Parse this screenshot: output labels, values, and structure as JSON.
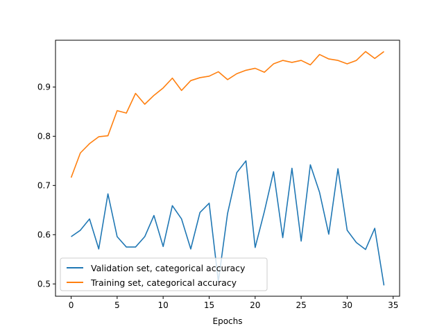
{
  "chart_data": {
    "type": "line",
    "title": "",
    "xlabel": "Epochs",
    "ylabel": "",
    "xlim": [
      -1.7,
      35.7
    ],
    "ylim": [
      0.475,
      0.995
    ],
    "x_ticks": [
      0,
      5,
      10,
      15,
      20,
      25,
      30,
      35
    ],
    "y_ticks": [
      0.5,
      0.6,
      0.7,
      0.8,
      0.9
    ],
    "x_tick_labels": [
      "0",
      "5",
      "10",
      "15",
      "20",
      "25",
      "30",
      "35"
    ],
    "y_tick_labels": [
      "0.5",
      "0.6",
      "0.7",
      "0.8",
      "0.9"
    ],
    "grid": false,
    "legend_position": "lower-left",
    "x": [
      0,
      1,
      2,
      3,
      4,
      5,
      6,
      7,
      8,
      9,
      10,
      11,
      12,
      13,
      14,
      15,
      16,
      17,
      18,
      19,
      20,
      21,
      22,
      23,
      24,
      25,
      26,
      27,
      28,
      29,
      30,
      31,
      32,
      33,
      34
    ],
    "series": [
      {
        "name": "Validation set, categorical accuracy",
        "color": "#1f77b4",
        "values": [
          0.596,
          0.609,
          0.632,
          0.571,
          0.683,
          0.596,
          0.575,
          0.575,
          0.596,
          0.639,
          0.576,
          0.659,
          0.632,
          0.571,
          0.645,
          0.664,
          0.505,
          0.643,
          0.726,
          0.75,
          0.574,
          0.647,
          0.728,
          0.594,
          0.735,
          0.587,
          0.742,
          0.686,
          0.601,
          0.734,
          0.609,
          0.584,
          0.57,
          0.613,
          0.497
        ]
      },
      {
        "name": "Training set, categorical accuracy",
        "color": "#ff7f0e",
        "values": [
          0.716,
          0.766,
          0.785,
          0.799,
          0.801,
          0.852,
          0.847,
          0.887,
          0.865,
          0.883,
          0.898,
          0.918,
          0.893,
          0.913,
          0.919,
          0.922,
          0.931,
          0.915,
          0.927,
          0.934,
          0.938,
          0.93,
          0.947,
          0.954,
          0.95,
          0.954,
          0.945,
          0.966,
          0.957,
          0.954,
          0.947,
          0.954,
          0.972,
          0.958,
          0.972
        ]
      }
    ]
  }
}
